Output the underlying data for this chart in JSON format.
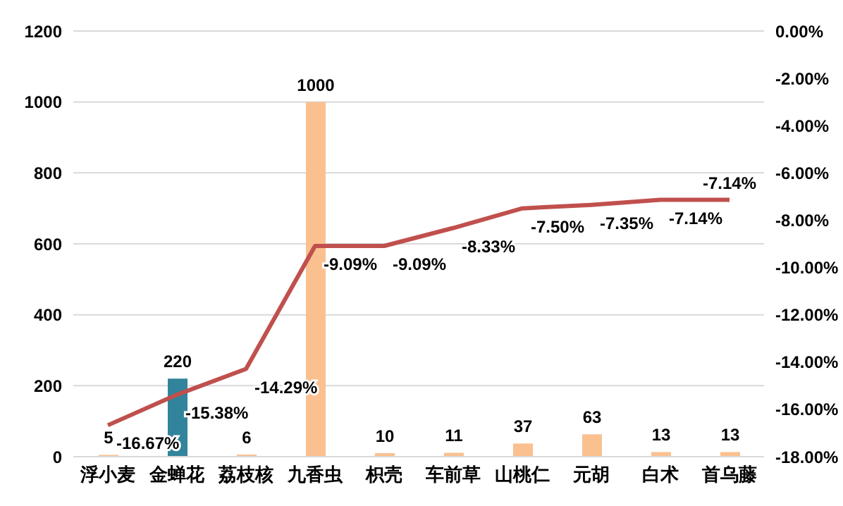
{
  "chart_data": {
    "type": "bar",
    "categories": [
      "浮小麦",
      "金蝉花",
      "荔枝核",
      "九香虫",
      "枳壳",
      "车前草",
      "山桃仁",
      "元胡",
      "白术",
      "首乌藤"
    ],
    "series": [
      {
        "colors": [
          "#fac090",
          "#31849b",
          "#fac090",
          "#fac090",
          "#fac090",
          "#fac090",
          "#fac090",
          "#fac090",
          "#fac090",
          "#fac090"
        ],
        "values": [
          5,
          220,
          6,
          1000,
          10,
          11,
          37,
          63,
          13,
          13
        ],
        "value_labels": [
          "5",
          "220",
          "6",
          "1000",
          "10",
          "11",
          "37",
          "63",
          "13",
          "13"
        ]
      },
      {
        "type": "line",
        "axis": "y2",
        "color": "#c0504d",
        "values": [
          -16.67,
          -15.38,
          -14.29,
          -9.09,
          -9.09,
          -8.33,
          -7.5,
          -7.35,
          -7.14,
          -7.14
        ],
        "value_labels": [
          "-16.67%",
          "-15.38%",
          "-14.29%",
          "-9.09%",
          "-9.09%",
          "-8.33%",
          "-7.50%",
          "-7.35%",
          "-7.14%",
          "-7.14%"
        ]
      }
    ],
    "ylim": [
      0,
      1200
    ],
    "yticks": [
      0,
      200,
      400,
      600,
      800,
      1000,
      1200
    ],
    "y2lim": [
      -18,
      0
    ],
    "y2ticks": [
      {
        "value": -18,
        "label": "-18.00%"
      },
      {
        "value": -16,
        "label": "-16.00%"
      },
      {
        "value": -14,
        "label": "-14.00%"
      },
      {
        "value": -12,
        "label": "-12.00%"
      },
      {
        "value": -10,
        "label": "-10.00%"
      },
      {
        "value": -8,
        "label": "-8.00%"
      },
      {
        "value": -6,
        "label": "-6.00%"
      },
      {
        "value": -4,
        "label": "-4.00%"
      },
      {
        "value": -2,
        "label": "-2.00%"
      },
      {
        "value": 0,
        "label": "0.00%"
      }
    ],
    "grid": "y",
    "legend": false,
    "marker": "none"
  }
}
